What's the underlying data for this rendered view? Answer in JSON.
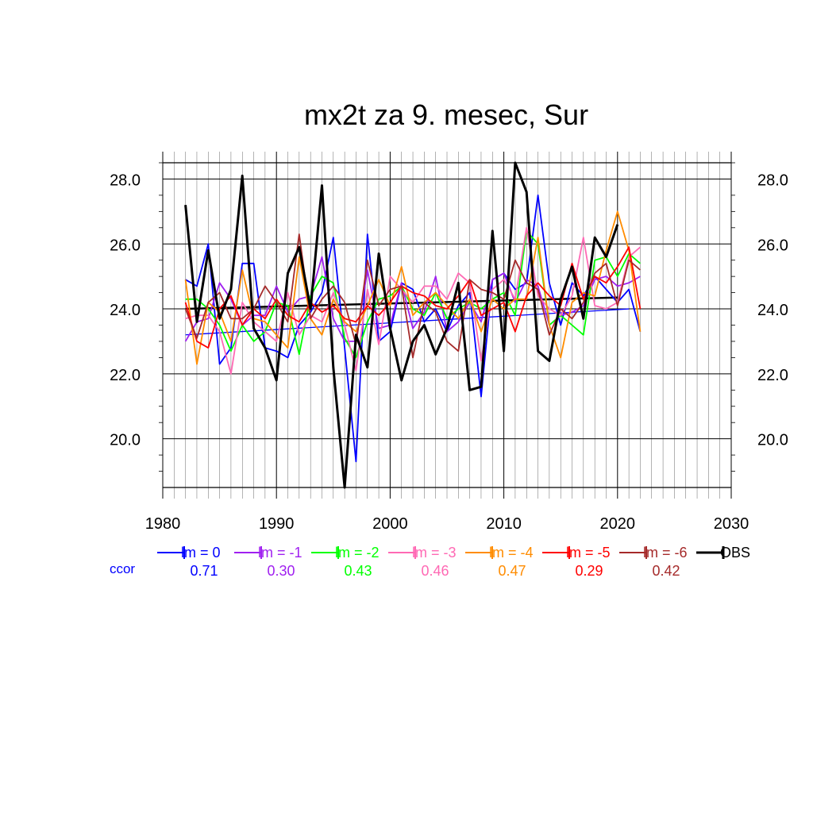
{
  "chart_data": {
    "type": "line",
    "title": "mx2t za 9. mesec, Sur",
    "xlabel": "",
    "ylabel": "",
    "xlim": [
      1980,
      2030
    ],
    "ylim": [
      18.5,
      28.5
    ],
    "x_ticks": [
      "1980",
      "1990",
      "2000",
      "2010",
      "2020",
      "2030"
    ],
    "y_ticks": [
      "20.0",
      "22.0",
      "24.0",
      "26.0",
      "28.0"
    ],
    "y_tick_values": [
      20,
      22,
      24,
      26,
      28
    ],
    "grid": true,
    "legend_position": "bottom",
    "ccor_label": "ccor",
    "series": [
      {
        "name": "lm = 0",
        "color": "#0000ff",
        "ccor": "0.71",
        "x_start": 1982,
        "values": [
          24.9,
          24.7,
          26.0,
          22.3,
          22.8,
          25.4,
          25.4,
          22.8,
          22.7,
          22.5,
          23.5,
          23.9,
          24.5,
          26.2,
          22.8,
          19.3,
          26.3,
          23.0,
          23.3,
          24.8,
          24.6,
          23.6,
          24.0,
          23.3,
          24.1,
          24.5,
          21.3,
          24.9,
          25.1,
          24.6,
          24.8,
          27.5,
          24.8,
          23.5,
          24.8,
          24.4,
          25.0,
          24.6,
          24.2,
          24.6,
          23.3
        ]
      },
      {
        "name": "lm = -1",
        "color": "#a020f0",
        "ccor": "0.30",
        "x_start": 1982,
        "values": [
          23.0,
          23.6,
          23.7,
          24.8,
          24.3,
          23.5,
          23.8,
          23.8,
          24.7,
          23.9,
          24.3,
          24.4,
          25.6,
          23.7,
          23.0,
          23.0,
          25.2,
          23.4,
          23.5,
          24.8,
          23.4,
          23.9,
          25.0,
          23.3,
          23.6,
          24.2,
          23.6,
          24.9,
          25.1,
          24.2,
          24.9,
          24.7,
          23.5,
          23.8,
          23.9,
          24.1,
          24.9,
          25.0,
          24.7,
          24.8,
          25.0
        ]
      },
      {
        "name": "lm = -2",
        "color": "#00ff00",
        "ccor": "0.43",
        "x_start": 1982,
        "values": [
          24.3,
          24.3,
          24.0,
          23.5,
          22.7,
          23.5,
          23.0,
          23.3,
          24.2,
          24.1,
          22.6,
          24.4,
          25.0,
          24.8,
          23.1,
          22.5,
          23.6,
          24.3,
          24.4,
          24.7,
          24.0,
          23.8,
          24.5,
          23.7,
          24.0,
          24.2,
          24.0,
          24.3,
          24.5,
          23.8,
          26.4,
          26.0,
          23.5,
          23.8,
          23.5,
          23.2,
          25.5,
          25.6,
          25.0,
          25.7,
          25.4
        ]
      },
      {
        "name": "lm = -3",
        "color": "#ff69b4",
        "ccor": "0.46",
        "x_start": 1982,
        "values": [
          23.7,
          23.8,
          23.8,
          23.3,
          22.0,
          24.2,
          23.6,
          23.3,
          23.0,
          24.5,
          23.2,
          23.8,
          23.6,
          24.5,
          23.5,
          22.1,
          24.6,
          22.9,
          25.0,
          24.6,
          24.2,
          24.7,
          24.7,
          24.3,
          25.1,
          24.8,
          22.4,
          24.6,
          24.9,
          24.3,
          26.5,
          24.4,
          24.0,
          23.8,
          24.4,
          26.2,
          24.1,
          24.0,
          24.2,
          25.6,
          25.9
        ]
      },
      {
        "name": "lm = -4",
        "color": "#ff8c00",
        "ccor": "0.47",
        "x_start": 1982,
        "values": [
          24.9,
          22.3,
          24.2,
          23.9,
          23.0,
          25.2,
          23.7,
          23.6,
          23.2,
          22.8,
          25.6,
          23.7,
          23.2,
          24.3,
          23.6,
          23.3,
          24.1,
          24.9,
          24.1,
          25.3,
          23.8,
          24.2,
          24.5,
          24.1,
          23.7,
          24.3,
          23.3,
          24.3,
          24.0,
          24.3,
          24.3,
          26.2,
          23.5,
          22.5,
          24.2,
          24.5,
          24.4,
          25.8,
          27.0,
          25.8,
          23.3
        ]
      },
      {
        "name": "lm = -5",
        "color": "#ff0000",
        "ccor": "0.29",
        "x_start": 1982,
        "values": [
          24.2,
          23.0,
          22.8,
          24.0,
          24.4,
          23.5,
          24.0,
          23.7,
          24.3,
          23.8,
          23.6,
          24.2,
          23.9,
          24.1,
          23.7,
          23.6,
          24.1,
          23.8,
          24.2,
          24.7,
          24.5,
          24.4,
          24.1,
          24.0,
          24.4,
          24.9,
          23.8,
          24.0,
          24.2,
          23.3,
          24.4,
          24.8,
          24.4,
          24.1,
          25.4,
          24.3,
          25.0,
          24.8,
          25.3,
          25.9,
          24.0
        ]
      },
      {
        "name": "lm = -6",
        "color": "#a52a2a",
        "ccor": "0.42",
        "x_start": 1982,
        "values": [
          24.0,
          23.1,
          24.2,
          24.5,
          23.7,
          23.7,
          24.0,
          24.7,
          24.2,
          23.6,
          26.3,
          23.7,
          24.3,
          24.7,
          24.2,
          22.9,
          25.5,
          24.1,
          24.6,
          24.7,
          22.5,
          24.2,
          23.9,
          23.0,
          22.7,
          24.9,
          24.6,
          24.5,
          24.3,
          25.5,
          24.8,
          24.6,
          23.2,
          24.0,
          23.7,
          24.2,
          25.1,
          25.4,
          24.1,
          25.5,
          25.2
        ]
      },
      {
        "name": "OBS",
        "color": "#000000",
        "ccor": "",
        "x_start": 1982,
        "values": [
          27.2,
          23.6,
          25.8,
          23.7,
          24.6,
          28.1,
          23.4,
          22.8,
          21.8,
          25.1,
          25.9,
          24.0,
          27.8,
          22.2,
          18.5,
          23.2,
          22.2,
          25.7,
          23.4,
          21.8,
          23.0,
          23.5,
          22.6,
          23.4,
          24.8,
          21.5,
          21.6,
          26.4,
          22.7,
          28.5,
          27.6,
          22.7,
          22.4,
          24.3,
          25.3,
          23.7,
          26.2,
          25.6,
          26.6
        ]
      }
    ],
    "trend_lines": [
      {
        "series": "lm = 0",
        "color": "#0000ff",
        "x": [
          1982,
          2021
        ],
        "y": [
          23.2,
          24.0
        ]
      },
      {
        "series": "OBS",
        "color": "#000000",
        "x": [
          1982,
          2020
        ],
        "y": [
          24.0,
          24.35
        ]
      }
    ]
  }
}
